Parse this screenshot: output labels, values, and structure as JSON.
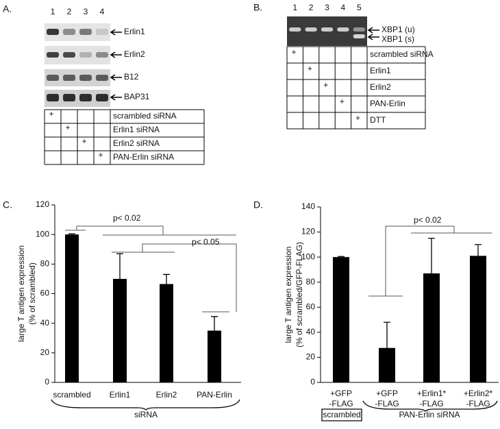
{
  "panel_a": {
    "label": "A.",
    "lanes": [
      "1",
      "2",
      "3",
      "4"
    ],
    "bands": [
      "Erlin1",
      "Erlin2",
      "B12",
      "BAP31"
    ],
    "rows": [
      {
        "cells": [
          "+",
          null,
          null,
          null
        ],
        "label": "scrambled siRNA"
      },
      {
        "cells": [
          null,
          "+",
          null,
          null
        ],
        "label": "Erlin1 siRNA"
      },
      {
        "cells": [
          null,
          null,
          "+",
          null
        ],
        "label": "Erlin2 siRNA"
      },
      {
        "cells": [
          null,
          null,
          null,
          "+"
        ],
        "label": "PAN-Erlin siRNA"
      }
    ]
  },
  "panel_b": {
    "label": "B.",
    "lanes": [
      "1",
      "2",
      "3",
      "4",
      "5"
    ],
    "bands": [
      "XBP1 (u)",
      "XBP1 (s)"
    ],
    "rows": [
      {
        "cells": [
          "+",
          null,
          null,
          null,
          null
        ],
        "label": "scrambled siRNA"
      },
      {
        "cells": [
          null,
          "+",
          null,
          null,
          null
        ],
        "label": "Erlin1"
      },
      {
        "cells": [
          null,
          null,
          "+",
          null,
          null
        ],
        "label": "Erlin2"
      },
      {
        "cells": [
          null,
          null,
          null,
          "+",
          null
        ],
        "label": "PAN-Erlin"
      },
      {
        "cells": [
          null,
          null,
          null,
          null,
          "+"
        ],
        "label": "DTT"
      }
    ]
  },
  "chart_data": [
    {
      "type": "bar",
      "panel_label": "C.",
      "ylabel": [
        "large T antigen expression",
        "(% of scrambled)"
      ],
      "categories": [
        [
          "scrambled"
        ],
        [
          "Erlin1"
        ],
        [
          "Erlin2"
        ],
        [
          "PAN-Erlin"
        ]
      ],
      "values": [
        100,
        70,
        66.5,
        35
      ],
      "errors": [
        0.5,
        17,
        6.5,
        9.5
      ],
      "color": "#000000",
      "ylim": [
        0,
        120
      ],
      "yticks": [
        0,
        20,
        40,
        60,
        80,
        100,
        120
      ],
      "annotations": [
        "p< 0.02",
        "p< 0.05"
      ],
      "groups": [
        "siRNA"
      ]
    },
    {
      "type": "bar",
      "panel_label": "D.",
      "ylabel": [
        "large T antigen expression",
        "(% of scrambled/GFP-FLAG)"
      ],
      "categories": [
        [
          "+GFP",
          "-FLAG"
        ],
        [
          "+GFP",
          "-FLAG"
        ],
        [
          "+Erlin1*",
          "-FLAG"
        ],
        [
          "+Erlin2*",
          "-FLAG"
        ]
      ],
      "values": [
        100,
        27.5,
        87,
        101
      ],
      "errors": [
        0.5,
        20.5,
        28,
        9
      ],
      "color": "#000000",
      "ylim": [
        0,
        140
      ],
      "yticks": [
        0,
        20,
        40,
        60,
        80,
        100,
        120,
        140
      ],
      "annotations": [
        "p< 0.02"
      ],
      "groups": [
        "scrambled",
        "PAN-Erlin siRNA"
      ]
    }
  ]
}
